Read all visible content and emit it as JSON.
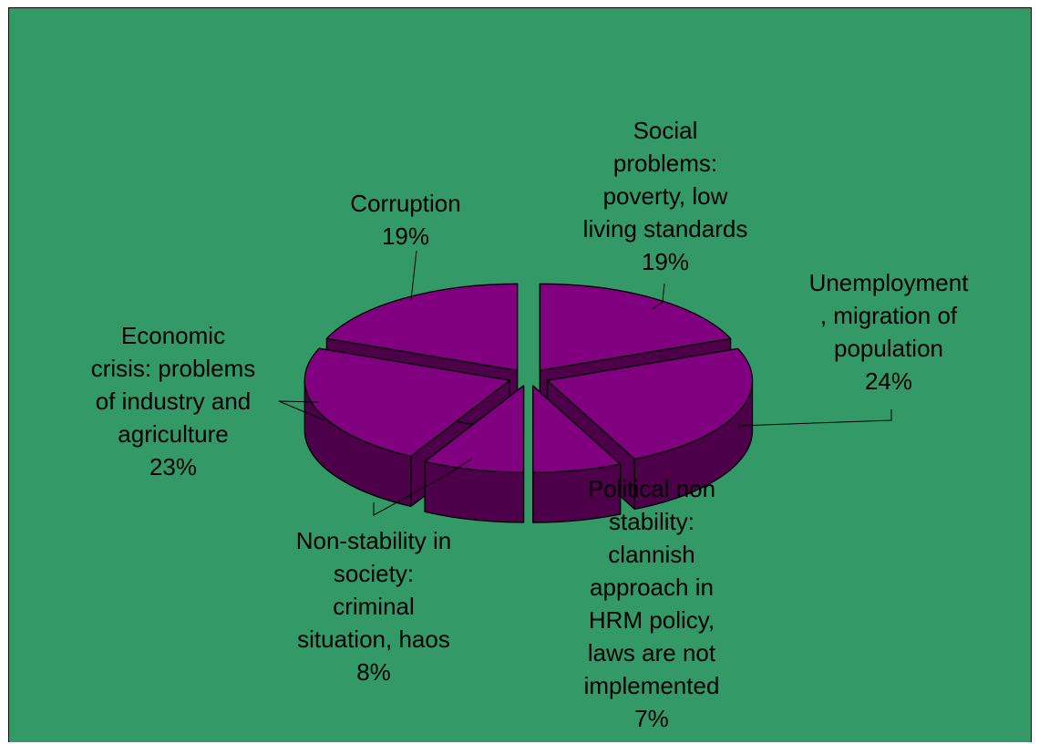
{
  "chart_data": {
    "type": "pie",
    "title": "",
    "categories": [
      "Social problems: poverty, low living standards",
      "Unemployment, migration of population",
      "Political non stability: clannish approach in HRM policy, laws are not implemented",
      "Non-stability in society: criminal situation, haos",
      "Economic crisis: problems of industry and agriculture",
      "Corruption"
    ],
    "values": [
      19,
      24,
      7,
      8,
      23,
      19
    ],
    "labels": [
      "Social\nproblems:\npoverty, low\nliving standards\n19%",
      "Unemployment\n, migration of\npopulation\n24%",
      "Political non\nstability:\nclannish\napproach in\nHRM policy,\nlaws are not\nimplemented\n7%",
      "Non-stability in\nsociety:\ncriminal\nsituation, haos\n8%",
      "Economic\ncrisis: problems\nof industry and\nagriculture\n23%",
      "Corruption\n19%"
    ],
    "exploded": true,
    "three_d": true,
    "legend": "none"
  },
  "colors": {
    "background": "#339966",
    "slice_top": "#800080",
    "slice_side": "#4d0049",
    "outline": "#000000"
  }
}
